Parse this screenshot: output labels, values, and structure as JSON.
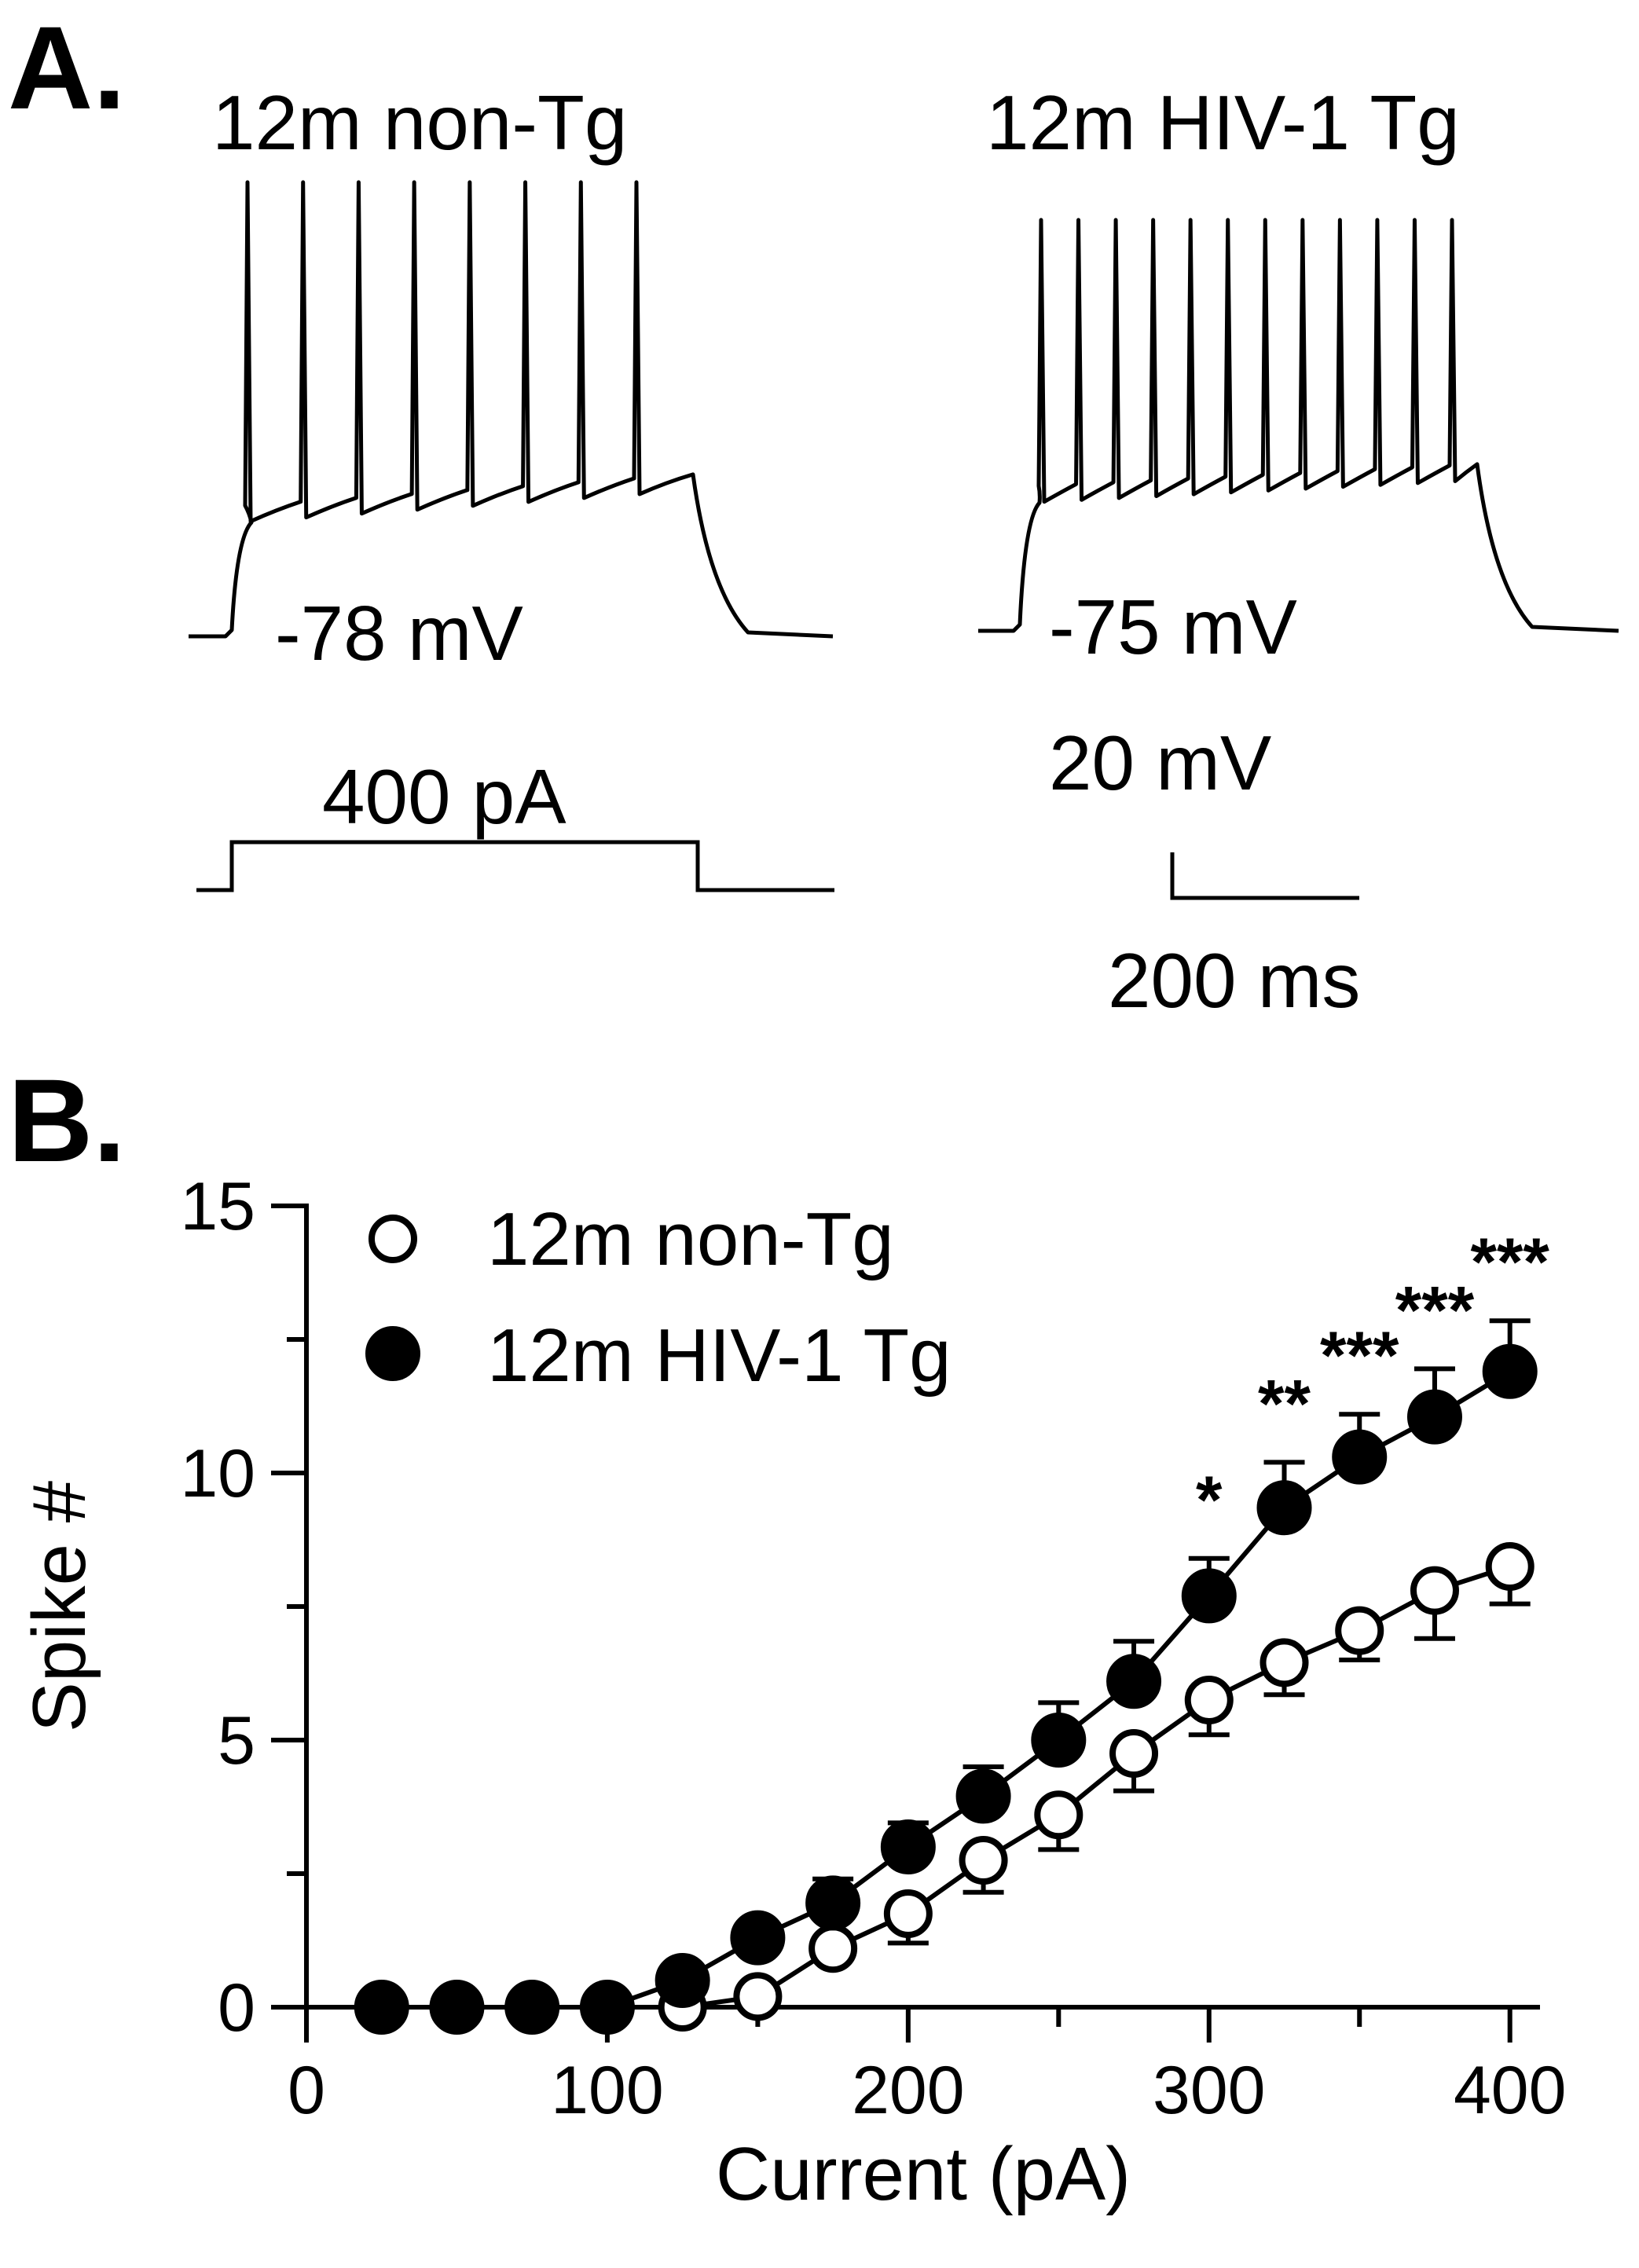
{
  "panel_a": {
    "letter": "A.",
    "traces": [
      {
        "title": "12m non-Tg",
        "resting_label": "-78 mV",
        "spike_count": 8
      },
      {
        "title": "12m HIV-1 Tg",
        "resting_label": "-75 mV",
        "spike_count": 12
      }
    ],
    "stimulus_label": "400 pA",
    "scalebar_voltage_label": "20 mV",
    "scalebar_time_label": "200 ms"
  },
  "panel_b": {
    "letter": "B."
  },
  "chart_data": {
    "type": "line",
    "xlabel": "Current (pA)",
    "ylabel": "Spike #",
    "xlim": [
      0,
      410
    ],
    "ylim": [
      0,
      15
    ],
    "x_ticks": [
      0,
      100,
      200,
      300,
      400
    ],
    "y_ticks": [
      0,
      5,
      10,
      15
    ],
    "legend_position": "top-left",
    "x": [
      25,
      50,
      75,
      100,
      125,
      150,
      175,
      200,
      225,
      250,
      275,
      300,
      325,
      350,
      375,
      400
    ],
    "series": [
      {
        "name": "12m non-Tg",
        "marker": "open-circle",
        "values": [
          0,
          0,
          0,
          0,
          0,
          0.2,
          1.1,
          1.75,
          2.75,
          3.6,
          4.75,
          5.75,
          6.45,
          7.05,
          7.8,
          8.25
        ],
        "error": [
          0,
          0,
          0,
          0,
          0,
          0.05,
          0.1,
          0.55,
          0.6,
          0.65,
          0.7,
          0.65,
          0.6,
          0.55,
          0.9,
          0.7
        ]
      },
      {
        "name": "12m HIV-1 Tg",
        "marker": "filled-circle",
        "values": [
          0,
          0,
          0,
          0,
          0.5,
          1.3,
          1.95,
          3.0,
          3.95,
          5.0,
          6.1,
          7.7,
          9.35,
          10.3,
          11.05,
          11.9
        ],
        "error": [
          0,
          0,
          0,
          0,
          0.1,
          0.15,
          0.45,
          0.45,
          0.55,
          0.7,
          0.75,
          0.7,
          0.85,
          0.8,
          0.9,
          0.95
        ]
      }
    ],
    "annotations": [
      {
        "x": 300,
        "text": "*"
      },
      {
        "x": 325,
        "text": "**"
      },
      {
        "x": 350,
        "text": "***"
      },
      {
        "x": 375,
        "text": "***"
      },
      {
        "x": 400,
        "text": "***"
      }
    ]
  }
}
